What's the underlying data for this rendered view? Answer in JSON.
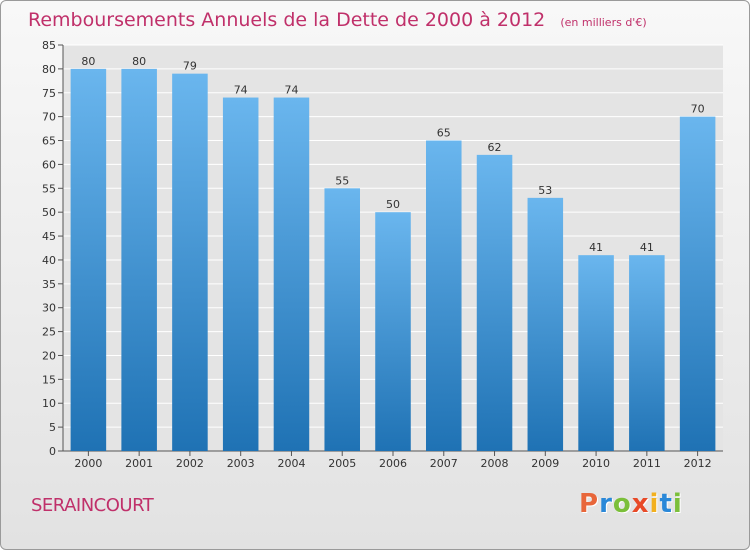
{
  "header": {
    "title": "Remboursements Annuels de la Dette de 2000 à 2012",
    "subtitle": "(en milliers d'€)"
  },
  "commune": "SERAINCOURT",
  "logo": {
    "text": "Proxiti",
    "letters": [
      "P",
      "r",
      "o",
      "x",
      "i",
      "t",
      "i"
    ],
    "colors": [
      "#e8663a",
      "#2a88d8",
      "#7bbf3a",
      "#e84a28",
      "#f2b01e",
      "#2a88d8",
      "#7bbf3a"
    ]
  },
  "colors": {
    "accent": "#c0306a",
    "bar_light": "#6ab6ee",
    "bar_dark": "#1f72b4"
  },
  "chart_data": {
    "type": "bar",
    "title": "Remboursements Annuels de la Dette de 2000 à 2012",
    "subtitle": "(en milliers d'€)",
    "categories": [
      "2000",
      "2001",
      "2002",
      "2003",
      "2004",
      "2005",
      "2006",
      "2007",
      "2008",
      "2009",
      "2010",
      "2011",
      "2012"
    ],
    "values": [
      80,
      80,
      79,
      74,
      74,
      55,
      50,
      65,
      62,
      53,
      41,
      41,
      70
    ],
    "ylim": [
      0,
      85
    ],
    "yticks": [
      0,
      5,
      10,
      15,
      20,
      25,
      30,
      35,
      40,
      45,
      50,
      55,
      60,
      65,
      70,
      75,
      80,
      85
    ],
    "grid": true,
    "data_labels": true
  }
}
